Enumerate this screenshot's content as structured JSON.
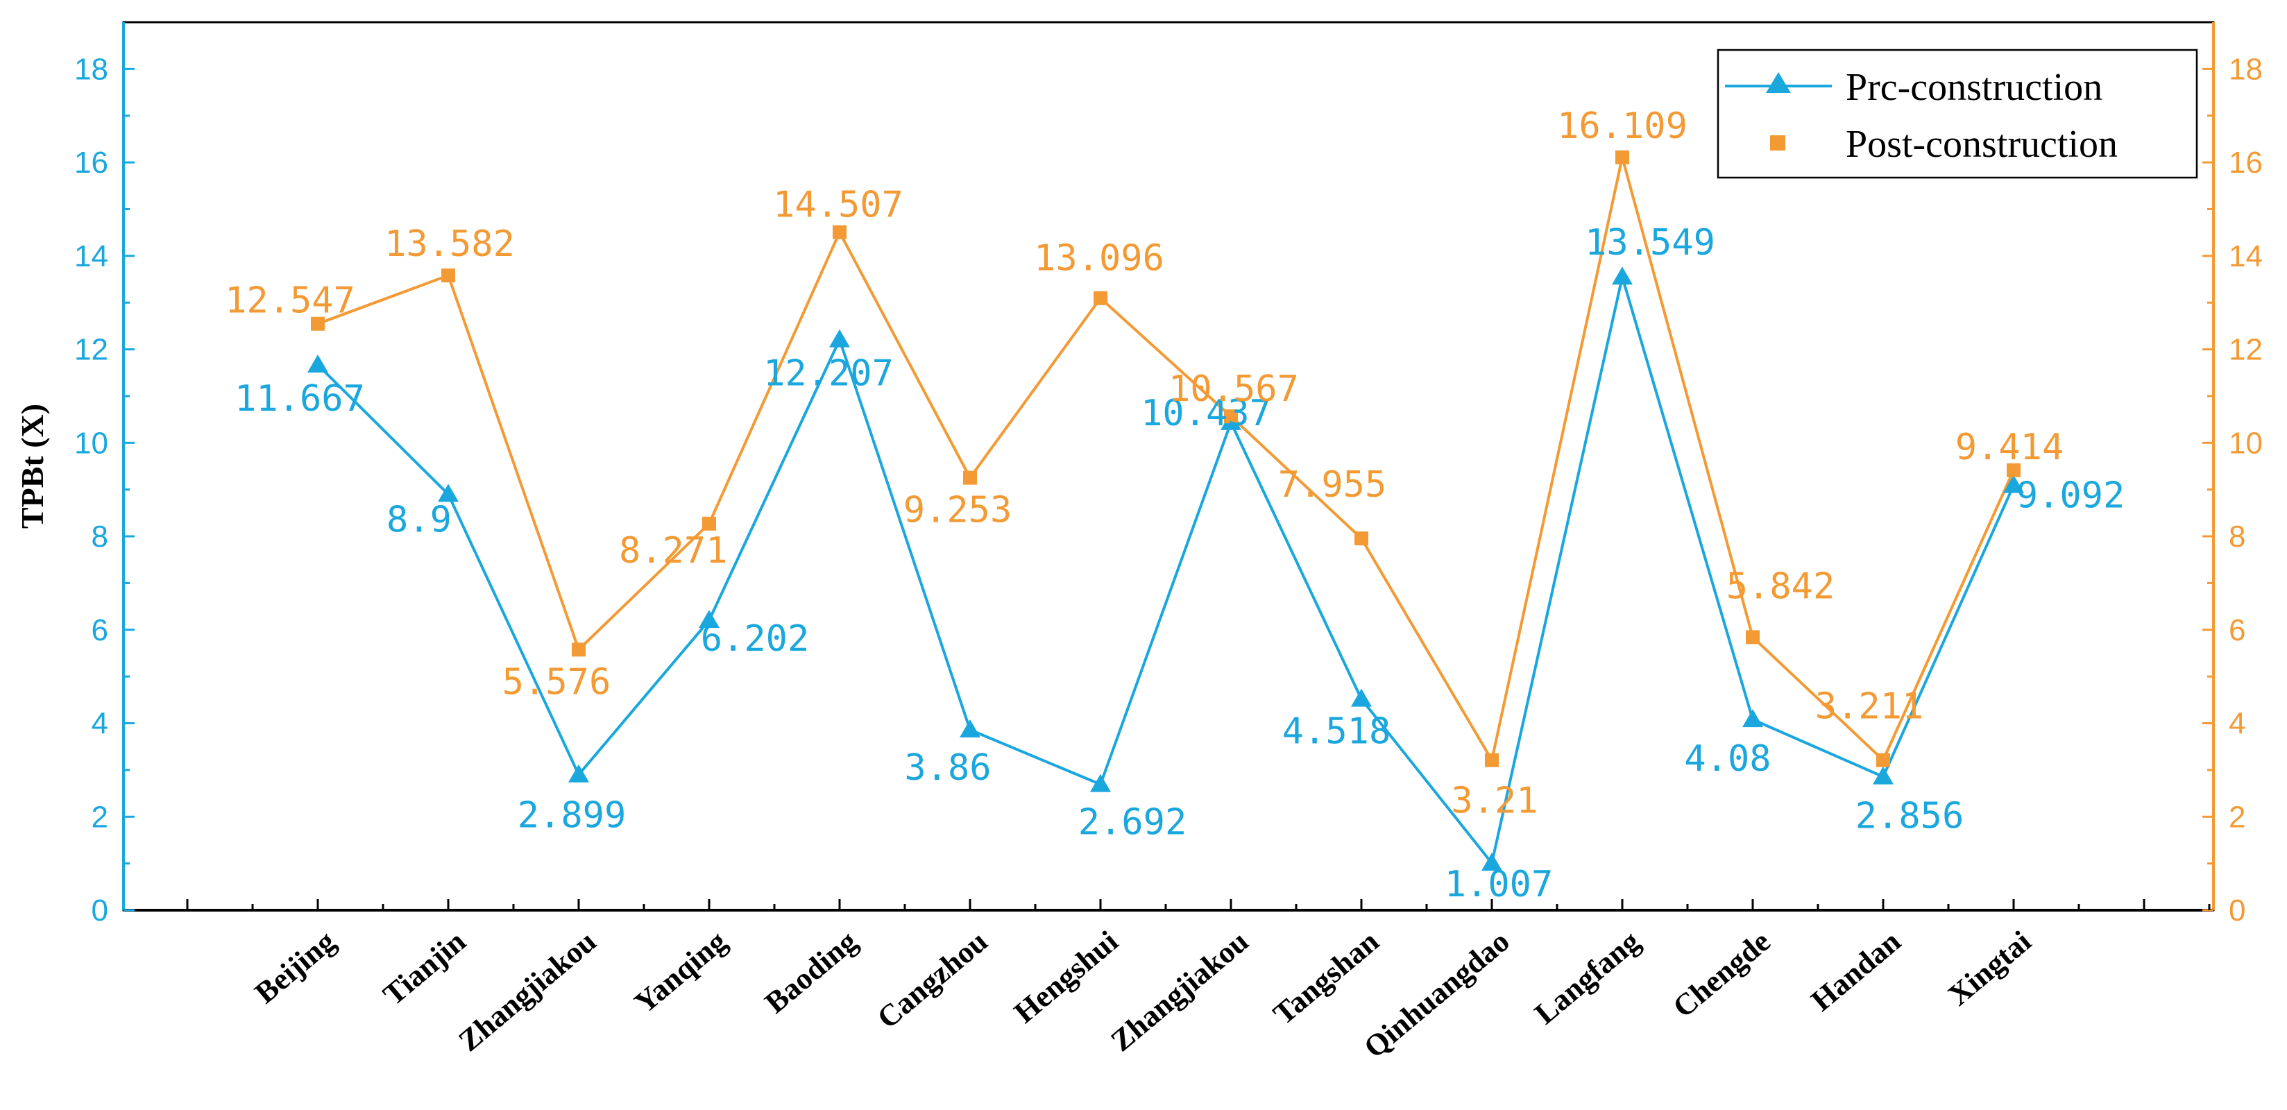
{
  "chart_data": {
    "type": "line",
    "title": "",
    "xlabel": "",
    "ylabel": "TPBt (X)",
    "ylim": [
      0,
      19
    ],
    "y_ticks": [
      0,
      2,
      4,
      6,
      8,
      10,
      12,
      14,
      16,
      18
    ],
    "categories": [
      "Beijing",
      "Tianjin",
      "Zhangjiakou",
      "Yanqing",
      "Baoding",
      "Cangzhou",
      "Hengshui",
      "Zhangjiakou",
      "Tangshan",
      "Qinhuangdao",
      "Langfang",
      "Chengde",
      "Handan",
      "Xingtai"
    ],
    "legend_position": "top-right",
    "series": [
      {
        "name": "Prc-construction",
        "color": "#1AA7DD",
        "marker": "triangle",
        "values": [
          11.667,
          8.9,
          2.899,
          6.202,
          12.207,
          3.86,
          2.692,
          10.437,
          4.518,
          1.007,
          13.549,
          4.08,
          2.856,
          9.092
        ],
        "labels": [
          "11.667",
          "8.9",
          "2.899",
          "6.202",
          "12.207",
          "3.86",
          "2.692",
          "10.437",
          "4.518",
          "1.007",
          "13.549",
          "4.08",
          "2.856",
          "9.092"
        ]
      },
      {
        "name": "Post-construction",
        "color": "#F39A34",
        "marker": "square",
        "values": [
          12.547,
          13.582,
          5.576,
          8.271,
          14.507,
          9.253,
          13.096,
          10.567,
          7.955,
          3.21,
          16.109,
          5.842,
          3.211,
          9.414
        ],
        "labels": [
          "12.547",
          "13.582",
          "5.576",
          "8.271",
          "14.507",
          "9.253",
          "13.096",
          "10.567",
          "7.955",
          "3.21",
          "16.109",
          "5.842",
          "3.211",
          "9.414"
        ]
      }
    ]
  }
}
